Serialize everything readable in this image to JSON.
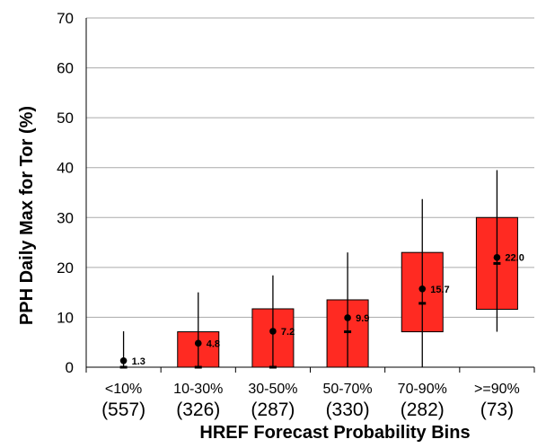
{
  "chart_data": {
    "type": "box",
    "ylabel": "PPH Daily Max for Tor (%)",
    "xlabel": "HREF Forecast Probability Bins",
    "ylim": [
      0,
      70
    ],
    "yticks": [
      0,
      10,
      20,
      30,
      40,
      50,
      60,
      70
    ],
    "grid": true,
    "categories": [
      "<10%",
      "10-30%",
      "30-50%",
      "50-70%",
      "70-90%",
      ">=90%"
    ],
    "counts": [
      "(557)",
      "(326)",
      "(287)",
      "(330)",
      "(282)",
      "(73)"
    ],
    "colors": {
      "box": "#ff2a22",
      "box_edge": "#000000",
      "grid": "#aaaaaa"
    },
    "boxes": [
      {
        "whisker_low": 0,
        "q1": 0,
        "median": 0,
        "q3": 0,
        "whisker_high": 7.2,
        "mean": 1.3,
        "mean_label": "1.3"
      },
      {
        "whisker_low": 0,
        "q1": 0,
        "median": 0,
        "q3": 7.1,
        "whisker_high": 15.0,
        "mean": 4.8,
        "mean_label": "4.8"
      },
      {
        "whisker_low": 0,
        "q1": 0,
        "median": 0,
        "q3": 11.7,
        "whisker_high": 18.4,
        "mean": 7.2,
        "mean_label": "7.2"
      },
      {
        "whisker_low": 0,
        "q1": 0,
        "median": 7.1,
        "q3": 13.5,
        "whisker_high": 23.0,
        "mean": 9.9,
        "mean_label": "9.9"
      },
      {
        "whisker_low": 0,
        "q1": 7.1,
        "median": 12.8,
        "q3": 23.0,
        "whisker_high": 33.7,
        "mean": 15.7,
        "mean_label": "15.7"
      },
      {
        "whisker_low": 7.1,
        "q1": 11.6,
        "median": 20.8,
        "q3": 30.0,
        "whisker_high": 39.5,
        "mean": 22.0,
        "mean_label": "22.0"
      }
    ]
  }
}
